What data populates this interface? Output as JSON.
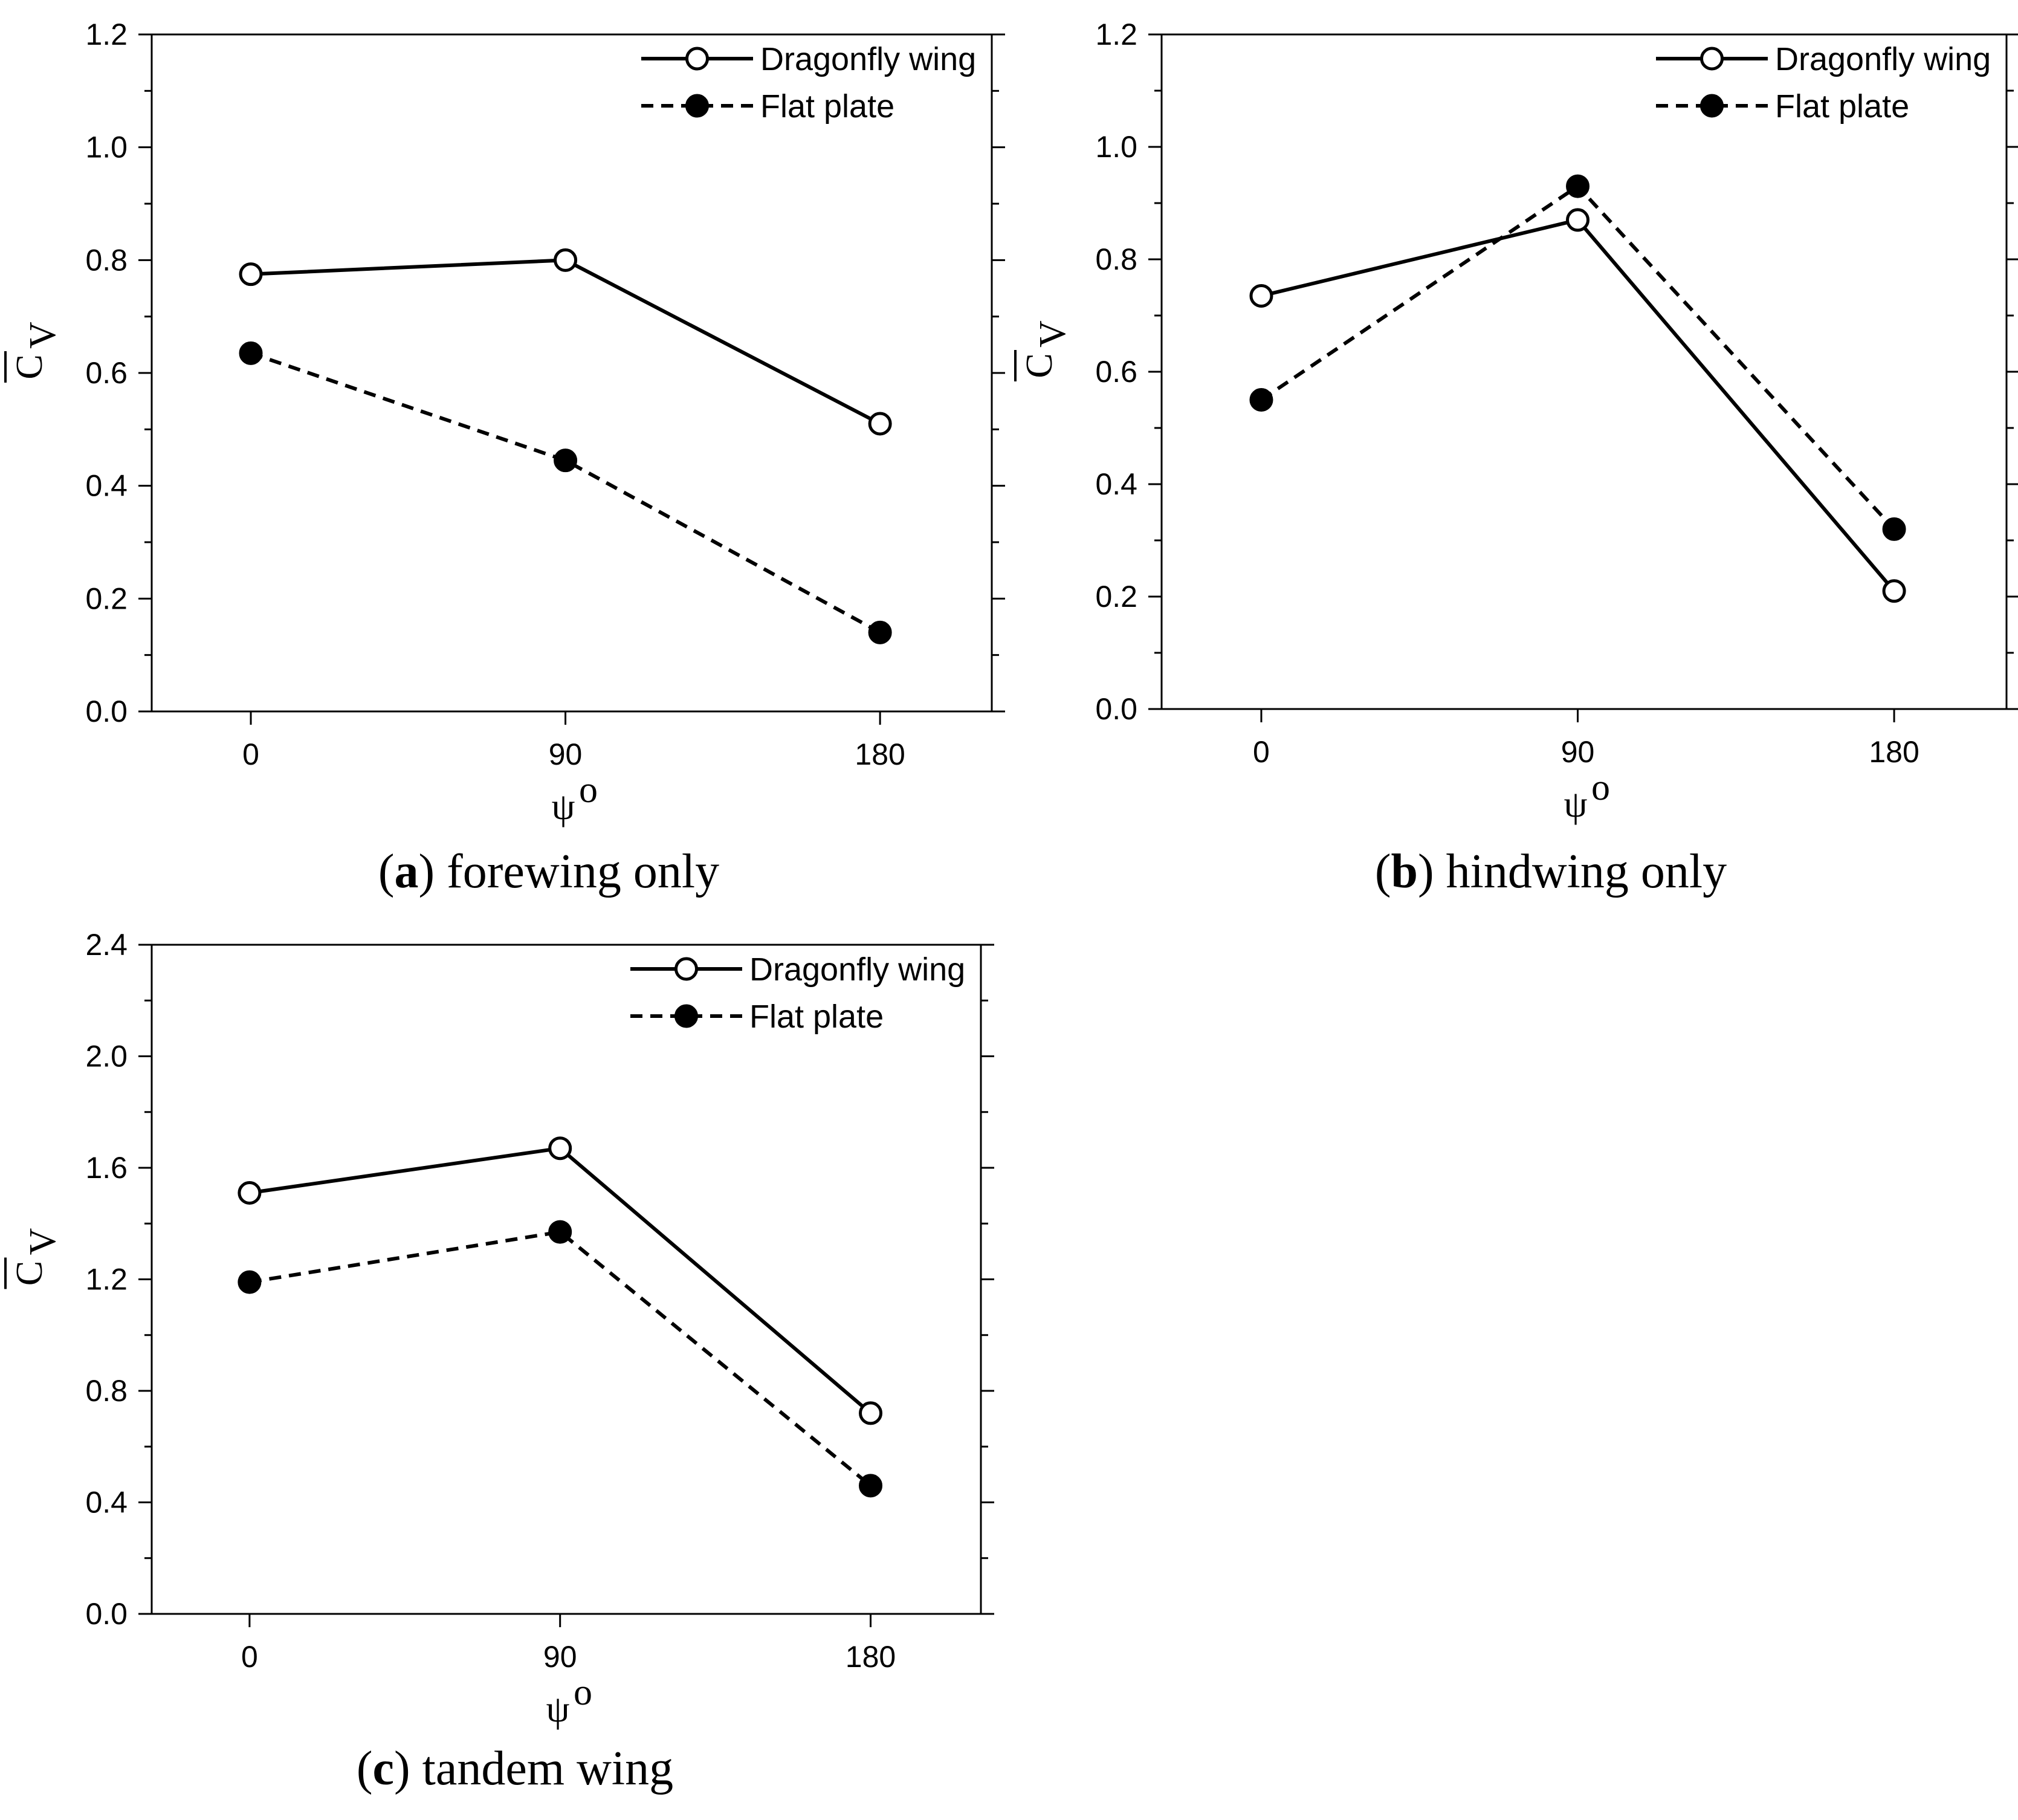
{
  "chart_data": [
    {
      "type": "line",
      "panel": "a",
      "caption_letter": "a",
      "caption_text": " forewing only",
      "x": [
        0,
        90,
        180
      ],
      "x_tick_labels": [
        "0",
        "90",
        "180"
      ],
      "y_tick_labels": [
        "0.0",
        "0.2",
        "0.4",
        "0.6",
        "0.8",
        "1.0",
        "1.2"
      ],
      "ylim": [
        0,
        1.2
      ],
      "xlabel": "ψ",
      "xlabel_sup": "o",
      "ylabel": "C",
      "ylabel_sub": "V",
      "legend_position": "top-right",
      "series": [
        {
          "name": "Dragonfly wing",
          "values": [
            0.775,
            0.8,
            0.51
          ],
          "marker": "open-circle",
          "line": "solid"
        },
        {
          "name": "Flat plate",
          "values": [
            0.635,
            0.445,
            0.14
          ],
          "marker": "filled-circle",
          "line": "dashed"
        }
      ]
    },
    {
      "type": "line",
      "panel": "b",
      "caption_letter": "b",
      "caption_text": " hindwing only",
      "x": [
        0,
        90,
        180
      ],
      "x_tick_labels": [
        "0",
        "90",
        "180"
      ],
      "y_tick_labels": [
        "0.0",
        "0.2",
        "0.4",
        "0.6",
        "0.8",
        "1.0",
        "1.2"
      ],
      "ylim": [
        0,
        1.2
      ],
      "xlabel": "ψ",
      "xlabel_sup": "o",
      "ylabel": "C",
      "ylabel_sub": "V",
      "legend_position": "top-right",
      "series": [
        {
          "name": "Dragonfly wing",
          "values": [
            0.735,
            0.87,
            0.21
          ],
          "marker": "open-circle",
          "line": "solid"
        },
        {
          "name": "Flat plate",
          "values": [
            0.55,
            0.93,
            0.32
          ],
          "marker": "filled-circle",
          "line": "dashed"
        }
      ]
    },
    {
      "type": "line",
      "panel": "c",
      "caption_letter": "c",
      "caption_text": " tandem wing",
      "x": [
        0,
        90,
        180
      ],
      "x_tick_labels": [
        "0",
        "90",
        "180"
      ],
      "y_tick_labels": [
        "0.0",
        "0.4",
        "0.8",
        "1.2",
        "1.6",
        "2.0",
        "2.4"
      ],
      "ylim": [
        0,
        2.4
      ],
      "xlabel": "ψ",
      "xlabel_sup": "o",
      "ylabel": "C",
      "ylabel_sub": "V",
      "legend_position": "top-right",
      "series": [
        {
          "name": "Dragonfly wing",
          "values": [
            1.51,
            1.67,
            0.72
          ],
          "marker": "open-circle",
          "line": "solid"
        },
        {
          "name": "Flat plate",
          "values": [
            1.19,
            1.37,
            0.46
          ],
          "marker": "filled-circle",
          "line": "dashed"
        }
      ]
    }
  ],
  "colors": {
    "ink": "#000000",
    "background": "#ffffff"
  }
}
